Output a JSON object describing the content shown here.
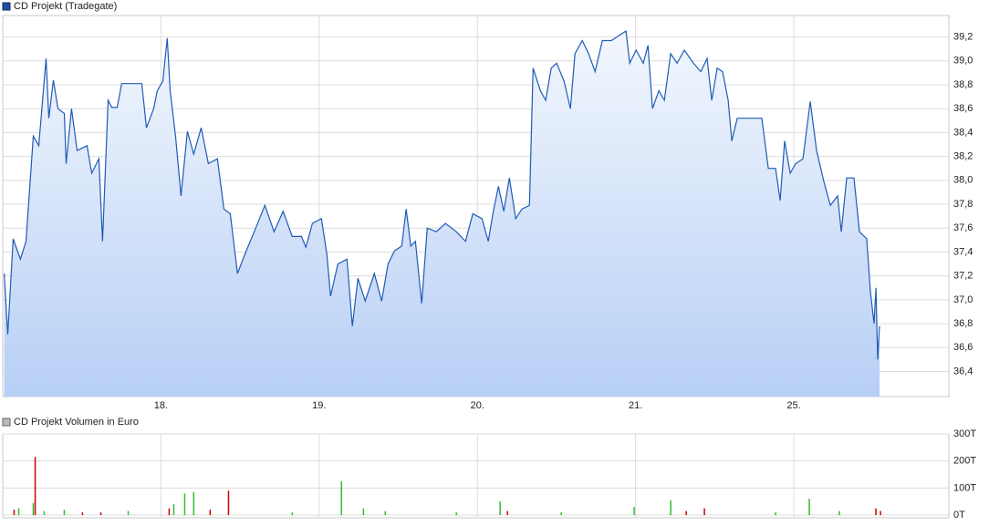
{
  "chart_data": [
    {
      "type": "line",
      "x": [
        0.009,
        0.032,
        0.066,
        0.112,
        0.147,
        0.193,
        0.228,
        0.274,
        0.291,
        0.32,
        0.349,
        0.389,
        0.401,
        0.435,
        0.47,
        0.533,
        0.562,
        0.608,
        0.631,
        0.666,
        0.689,
        0.723,
        0.752,
        0.879,
        0.908,
        0.954,
        0.977,
        1.012,
        1.04,
        1.058,
        1.092,
        1.127,
        1.167,
        1.207,
        1.254,
        1.3,
        1.357,
        1.398,
        1.438,
        1.484,
        1.53,
        1.599,
        1.657,
        1.715,
        1.772,
        1.83,
        1.888,
        1.916,
        1.957,
        2.014,
        2.049,
        2.072,
        2.118,
        2.176,
        2.21,
        2.245,
        2.291,
        2.349,
        2.395,
        2.435,
        2.476,
        2.522,
        2.55,
        2.579,
        2.608,
        2.648,
        2.683,
        2.741,
        2.798,
        2.867,
        2.925,
        2.971,
        3.029,
        3.069,
        3.098,
        3.133,
        3.167,
        3.202,
        3.242,
        3.282,
        3.329,
        3.352,
        3.398,
        3.432,
        3.467,
        3.501,
        3.548,
        3.588,
        3.617,
        3.663,
        3.703,
        3.744,
        3.79,
        3.847,
        3.893,
        3.939,
        3.963,
        4.003,
        4.049,
        4.078,
        4.107,
        4.147,
        4.182,
        4.222,
        4.262,
        4.308,
        4.366,
        4.412,
        4.452,
        4.481,
        4.516,
        4.55,
        4.585,
        4.608,
        4.643,
        4.798,
        4.839,
        4.885,
        4.914,
        4.942,
        4.977,
        5.012,
        5.058,
        5.104,
        5.144,
        5.19,
        5.231,
        5.277,
        5.3,
        5.334,
        5.38,
        5.415,
        5.461,
        5.484,
        5.507,
        5.519,
        5.53,
        5.542
      ],
      "series": [
        {
          "name": "CD Projekt (Tradegate)",
          "color": "#1f5bb5",
          "values": [
            37.22,
            36.71,
            37.51,
            37.34,
            37.49,
            38.37,
            38.29,
            39.02,
            38.52,
            38.84,
            38.6,
            38.56,
            38.14,
            38.6,
            38.25,
            38.29,
            38.06,
            38.18,
            37.49,
            38.67,
            38.61,
            38.61,
            38.81,
            38.81,
            38.44,
            38.6,
            38.75,
            38.83,
            39.19,
            38.75,
            38.37,
            37.87,
            38.41,
            38.22,
            38.44,
            38.14,
            38.18,
            37.76,
            37.72,
            37.22,
            37.38,
            37.6,
            37.79,
            37.57,
            37.74,
            37.53,
            37.53,
            37.44,
            37.64,
            37.68,
            37.38,
            37.03,
            37.3,
            37.34,
            36.78,
            37.18,
            36.99,
            37.22,
            36.99,
            37.3,
            37.41,
            37.45,
            37.76,
            37.45,
            37.49,
            36.97,
            37.6,
            37.57,
            37.64,
            37.57,
            37.49,
            37.72,
            37.68,
            37.49,
            37.72,
            37.95,
            37.74,
            38.02,
            37.68,
            37.76,
            37.79,
            38.94,
            38.75,
            38.67,
            38.94,
            38.98,
            38.83,
            38.6,
            39.06,
            39.17,
            39.06,
            38.91,
            39.17,
            39.17,
            39.21,
            39.25,
            38.98,
            39.09,
            38.98,
            39.13,
            38.6,
            38.75,
            38.67,
            39.06,
            38.98,
            39.09,
            38.98,
            38.91,
            39.02,
            38.67,
            38.94,
            38.91,
            38.67,
            38.33,
            38.52,
            38.52,
            38.1,
            38.1,
            37.83,
            38.33,
            38.06,
            38.14,
            38.18,
            38.66,
            38.25,
            37.99,
            37.79,
            37.87,
            37.57,
            38.02,
            38.02,
            37.57,
            37.51,
            37.07,
            36.8,
            37.1,
            36.5,
            36.78
          ]
        }
      ],
      "xlim": [
        0,
        5.98
      ],
      "xticks": [
        {
          "value": 1,
          "label": "18."
        },
        {
          "value": 2,
          "label": "19."
        },
        {
          "value": 3,
          "label": "20."
        },
        {
          "value": 4,
          "label": "21."
        },
        {
          "value": 5,
          "label": "25."
        }
      ],
      "ylim": [
        36.19,
        39.38
      ],
      "yticks": [
        {
          "value": 36.4,
          "label": "36,4"
        },
        {
          "value": 36.6,
          "label": "36,6"
        },
        {
          "value": 36.8,
          "label": "36,8"
        },
        {
          "value": 37.0,
          "label": "37,0"
        },
        {
          "value": 37.2,
          "label": "37,2"
        },
        {
          "value": 37.4,
          "label": "37,4"
        },
        {
          "value": 37.6,
          "label": "37,6"
        },
        {
          "value": 37.8,
          "label": "37,8"
        },
        {
          "value": 38.0,
          "label": "38,0"
        },
        {
          "value": 38.2,
          "label": "38,2"
        },
        {
          "value": 38.4,
          "label": "38,4"
        },
        {
          "value": 38.6,
          "label": "38,6"
        },
        {
          "value": 38.8,
          "label": "38,8"
        },
        {
          "value": 39.0,
          "label": "39,0"
        },
        {
          "value": 39.2,
          "label": "39,2"
        }
      ],
      "grid": true
    },
    {
      "type": "bar",
      "x": [
        0.072,
        0.101,
        0.193,
        0.205,
        0.262,
        0.389,
        0.504,
        0.62,
        0.793,
        1.052,
        1.081,
        1.15,
        1.207,
        1.311,
        1.427,
        1.83,
        2.141,
        2.28,
        2.418,
        2.867,
        3.144,
        3.19,
        3.53,
        3.991,
        4.222,
        4.32,
        4.435,
        4.885,
        5.098,
        5.288,
        5.519,
        5.548
      ],
      "series": [
        {
          "name": "CD Projekt Volumen in Euro",
          "color": "#bbbbbb",
          "values": [
            20,
            25,
            45,
            215,
            15,
            20,
            10,
            10,
            15,
            25,
            40,
            80,
            85,
            20,
            90,
            10,
            125,
            25,
            15,
            10,
            50,
            15,
            10,
            30,
            55,
            15,
            25,
            10,
            60,
            15,
            25,
            15
          ],
          "colors": [
            "#cc0000",
            "#33bb33",
            "#33bb33",
            "#cc0000",
            "#33bb33",
            "#33bb33",
            "#cc0000",
            "#cc0000",
            "#33bb33",
            "#cc0000",
            "#33bb33",
            "#33bb33",
            "#33bb33",
            "#cc0000",
            "#cc0000",
            "#33bb33",
            "#33bb33",
            "#33bb33",
            "#33bb33",
            "#33bb33",
            "#33bb33",
            "#cc0000",
            "#33bb33",
            "#33bb33",
            "#33bb33",
            "#cc0000",
            "#cc0000",
            "#33bb33",
            "#33bb33",
            "#33bb33",
            "#cc0000",
            "#cc0000"
          ]
        }
      ],
      "xlim": [
        0,
        5.98
      ],
      "ylim": [
        -10,
        300
      ],
      "yticks": [
        {
          "value": 0,
          "label": "0T"
        },
        {
          "value": 100,
          "label": "100T"
        },
        {
          "value": 200,
          "label": "200T"
        },
        {
          "value": 300,
          "label": "300T"
        }
      ],
      "grid": true
    }
  ]
}
